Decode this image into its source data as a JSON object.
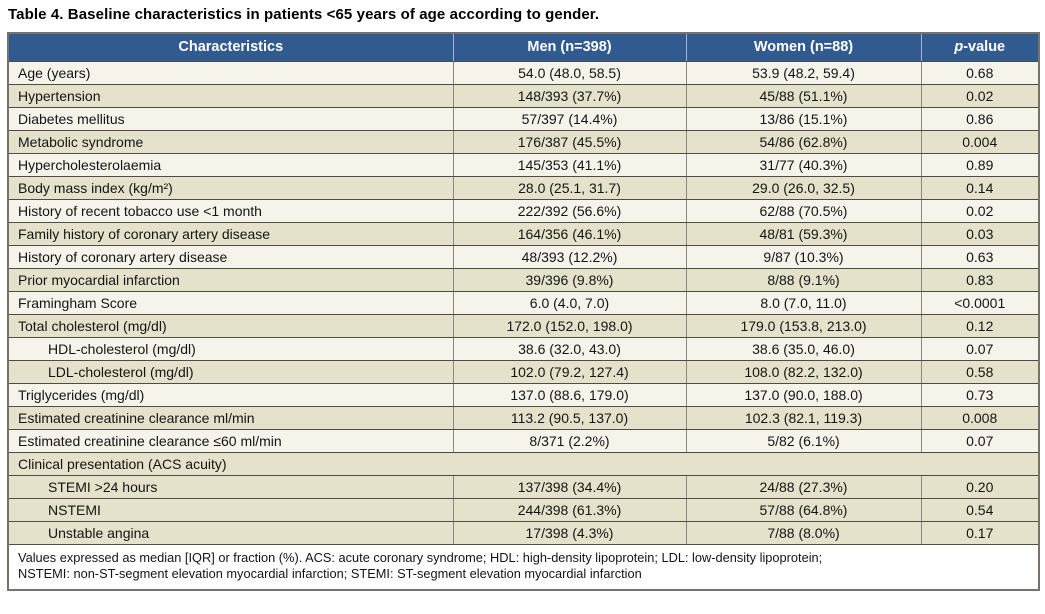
{
  "title": "Table 4. Baseline characteristics in patients <65 years of age according to gender.",
  "colors": {
    "header_bg": "#315A91",
    "header_text": "#FFFFFF",
    "row_light": "#F5F3EA",
    "row_dark": "#E5E2CB",
    "border_outer": "#76746A"
  },
  "table": {
    "headers": {
      "characteristics": "Characteristics",
      "men": "Men (n=398)",
      "women": "Women (n=88)",
      "p_italic": "p",
      "p_rest": "-value"
    },
    "rows": [
      {
        "label": "Age (years)",
        "men": "54.0 (48.0, 58.5)",
        "women": "53.9 (48.2, 59.4)",
        "p": "0.68",
        "shade": "light",
        "indent": false
      },
      {
        "label": "Hypertension",
        "men": "148/393 (37.7%)",
        "women": "45/88 (51.1%)",
        "p": "0.02",
        "shade": "dark",
        "indent": false
      },
      {
        "label": "Diabetes mellitus",
        "men": "57/397 (14.4%)",
        "women": "13/86 (15.1%)",
        "p": "0.86",
        "shade": "light",
        "indent": false
      },
      {
        "label": "Metabolic syndrome",
        "men": "176/387 (45.5%)",
        "women": "54/86 (62.8%)",
        "p": "0.004",
        "shade": "dark",
        "indent": false
      },
      {
        "label": "Hypercholesterolaemia",
        "men": "145/353 (41.1%)",
        "women": "31/77 (40.3%)",
        "p": "0.89",
        "shade": "light",
        "indent": false
      },
      {
        "label": "Body mass index (kg/m²)",
        "men": "28.0 (25.1, 31.7)",
        "women": "29.0 (26.0, 32.5)",
        "p": "0.14",
        "shade": "dark",
        "indent": false
      },
      {
        "label": "History of recent tobacco use <1 month",
        "men": "222/392 (56.6%)",
        "women": "62/88 (70.5%)",
        "p": "0.02",
        "shade": "light",
        "indent": false
      },
      {
        "label": "Family history of coronary artery disease",
        "men": "164/356 (46.1%)",
        "women": "48/81 (59.3%)",
        "p": "0.03",
        "shade": "dark",
        "indent": false
      },
      {
        "label": "History of coronary artery disease",
        "men": "48/393 (12.2%)",
        "women": "9/87 (10.3%)",
        "p": "0.63",
        "shade": "light",
        "indent": false
      },
      {
        "label": "Prior myocardial infarction",
        "men": "39/396 (9.8%)",
        "women": "8/88 (9.1%)",
        "p": "0.83",
        "shade": "dark",
        "indent": false
      },
      {
        "label": "Framingham Score",
        "men": "6.0 (4.0, 7.0)",
        "women": "8.0 (7.0, 11.0)",
        "p": "<0.0001",
        "shade": "light",
        "indent": false
      },
      {
        "label": "Total cholesterol (mg/dl)",
        "men": "172.0 (152.0, 198.0)",
        "women": "179.0 (153.8, 213.0)",
        "p": "0.12",
        "shade": "dark",
        "indent": false
      },
      {
        "label": "HDL-cholesterol (mg/dl)",
        "men": "38.6 (32.0, 43.0)",
        "women": "38.6 (35.0, 46.0)",
        "p": "0.07",
        "shade": "light",
        "indent": true
      },
      {
        "label": "LDL-cholesterol (mg/dl)",
        "men": "102.0 (79.2, 127.4)",
        "women": "108.0 (82.2, 132.0)",
        "p": "0.58",
        "shade": "dark",
        "indent": true
      },
      {
        "label": "Triglycerides (mg/dl)",
        "men": "137.0 (88.6, 179.0)",
        "women": "137.0 (90.0, 188.0)",
        "p": "0.73",
        "shade": "light",
        "indent": false
      },
      {
        "label": "Estimated creatinine clearance ml/min",
        "men": "113.2 (90.5, 137.0)",
        "women": "102.3 (82.1, 119.3)",
        "p": "0.008",
        "shade": "dark",
        "indent": false
      },
      {
        "label": "Estimated creatinine clearance ≤60 ml/min",
        "men": "8/371 (2.2%)",
        "women": "5/82 (6.1%)",
        "p": "0.07",
        "shade": "light",
        "indent": false
      },
      {
        "label": "Clinical presentation (ACS acuity)",
        "shade": "dark",
        "indent": false,
        "span": true
      },
      {
        "label": "STEMI >24 hours",
        "men": "137/398 (34.4%)",
        "women": "24/88 (27.3%)",
        "p": "0.20",
        "shade": "dark",
        "indent": true
      },
      {
        "label": "NSTEMI",
        "men": "244/398 (61.3%)",
        "women": "57/88 (64.8%)",
        "p": "0.54",
        "shade": "dark",
        "indent": true
      },
      {
        "label": "Unstable angina",
        "men": "17/398 (4.3%)",
        "women": "7/88 (8.0%)",
        "p": "0.17",
        "shade": "dark",
        "indent": true
      }
    ],
    "footnote": {
      "line1": "Values expressed as median [IQR] or fraction (%). ACS: acute coronary syndrome; HDL: high-density lipoprotein; LDL: low-density lipoprotein;",
      "line2": "NSTEMI: non-ST-segment elevation myocardial infarction; STEMI: ST-segment elevation myocardial infarction"
    }
  }
}
